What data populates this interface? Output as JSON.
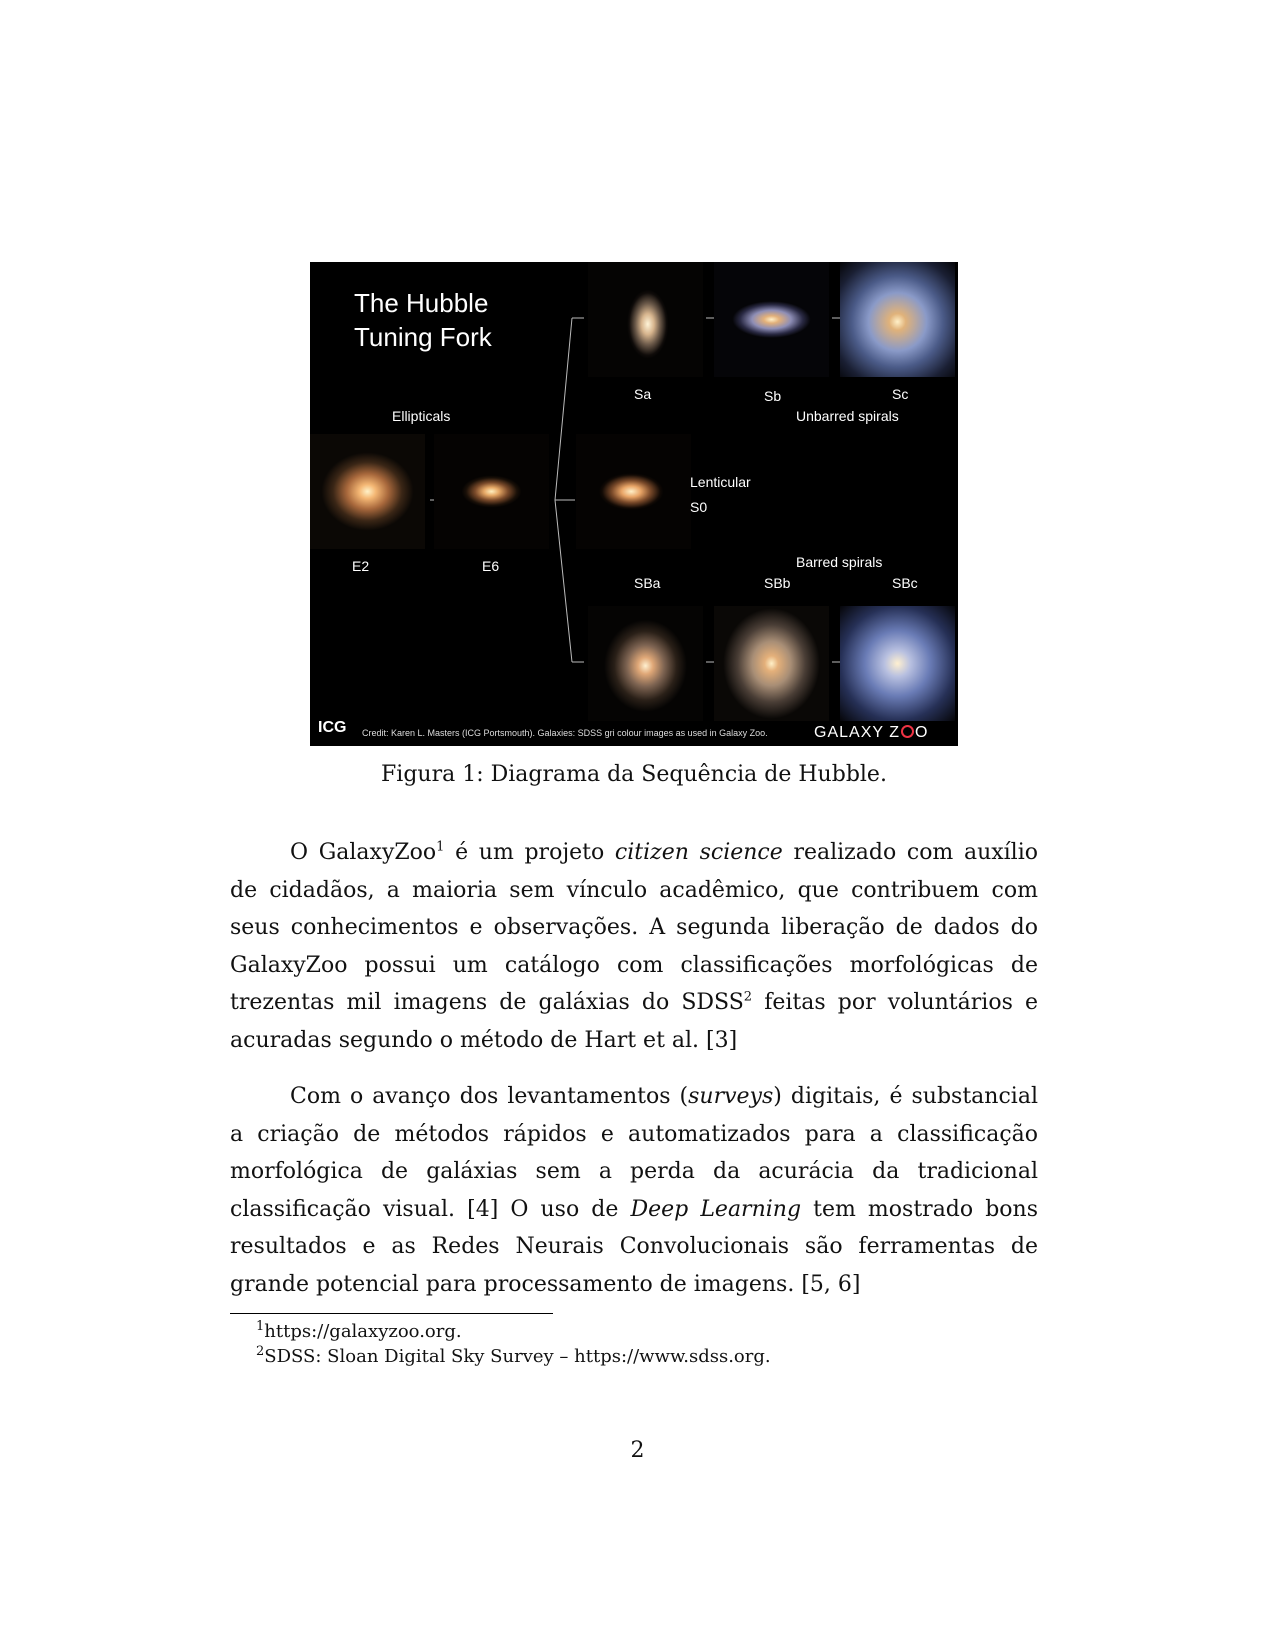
{
  "figure": {
    "title_line1": "The Hubble",
    "title_line2": "Tuning Fork",
    "labels": {
      "ellipticals": "Ellipticals",
      "e2": "E2",
      "e6": "E6",
      "sa": "Sa",
      "sb": "Sb",
      "sc": "Sc",
      "unbarred": "Unbarred spirals",
      "lenticular": "Lenticular",
      "s0": "S0",
      "barred": "Barred spirals",
      "sba": "SBa",
      "sbb": "SBb",
      "sbc": "SBc"
    },
    "logo_left": "ICG",
    "credit": "Credit: Karen L. Masters (ICG Portsmouth). Galaxies: SDSS gri colour images as used in Galaxy Zoo.",
    "logo_right_a": "GALAXY Z",
    "logo_right_b": "O"
  },
  "caption": "Figura 1: Diagrama da Sequência de Hubble.",
  "para1": {
    "a": "O GalaxyZoo",
    "sup1": "1",
    "b": " é um projeto ",
    "em": "citizen science",
    "c": " realizado com auxílio de cidadãos, a maioria sem vínculo acadêmico, que contribuem com seus conhecimentos e observações. A segunda liberação de dados do GalaxyZoo possui um catálogo com classificações morfológicas de trezentas mil imagens de galáxias do SDSS",
    "sup2": "2",
    "d": " feitas por voluntários e acuradas segundo o método de Hart et al. [3]"
  },
  "para2": {
    "a": "Com o avanço dos levantamentos (",
    "em1": "surveys",
    "b": ") digitais, é substancial a criação de métodos rápidos e automatizados para a classificação morfológica de galáxias sem a perda da acurácia da tradicional classificação visual. [4] O uso de ",
    "em2": "Deep Learning",
    "c": " tem mostrado bons resultados e as Redes Neurais Convolucionais são ferramentas de grande potencial para processamento de imagens. [5, 6]"
  },
  "footnotes": [
    {
      "mark": "1",
      "text": "https://galaxyzoo.org."
    },
    {
      "mark": "2",
      "text": "SDSS: Sloan Digital Sky Survey – https://www.sdss.org."
    }
  ],
  "page_number": "2"
}
